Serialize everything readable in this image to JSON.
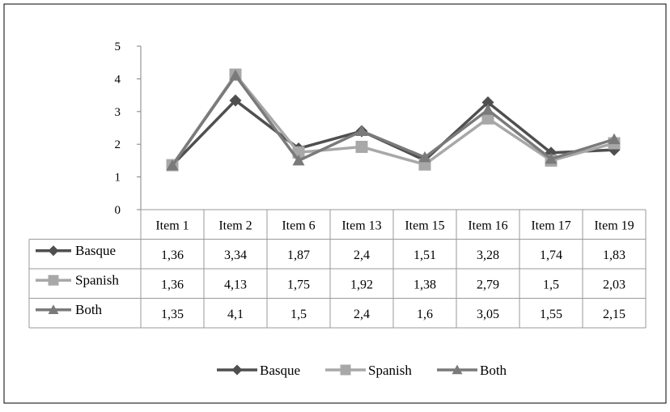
{
  "chart_data": {
    "type": "line",
    "title": "",
    "xlabel": "",
    "ylabel": "",
    "categories": [
      "Item 1",
      "Item 2",
      "Item 6",
      "Item 13",
      "Item 15",
      "Item 16",
      "Item 17",
      "Item 19"
    ],
    "ylim": [
      0,
      5
    ],
    "yticks": [
      "0",
      "1",
      "2",
      "3",
      "4",
      "5"
    ],
    "grid": false,
    "legend_position": "bottom",
    "series": [
      {
        "name": "Basque",
        "values": [
          1.36,
          3.34,
          1.87,
          2.4,
          1.51,
          3.28,
          1.74,
          1.83
        ],
        "labels": [
          "1,36",
          "3,34",
          "1,87",
          "2,4",
          "1,51",
          "3,28",
          "1,74",
          "1,83"
        ],
        "color": "#4f4f4f",
        "marker": "diamond"
      },
      {
        "name": "Spanish",
        "values": [
          1.36,
          4.13,
          1.75,
          1.92,
          1.38,
          2.79,
          1.5,
          2.03
        ],
        "labels": [
          "1,36",
          "4,13",
          "1,75",
          "1,92",
          "1,38",
          "2,79",
          "1,5",
          "2,03"
        ],
        "color": "#a8a8a8",
        "marker": "square"
      },
      {
        "name": "Both",
        "values": [
          1.35,
          4.1,
          1.5,
          2.4,
          1.6,
          3.05,
          1.55,
          2.15
        ],
        "labels": [
          "1,35",
          "4,1",
          "1,5",
          "2,4",
          "1,6",
          "3,05",
          "1,55",
          "2,15"
        ],
        "color": "#7a7a7a",
        "marker": "triangle"
      }
    ]
  }
}
